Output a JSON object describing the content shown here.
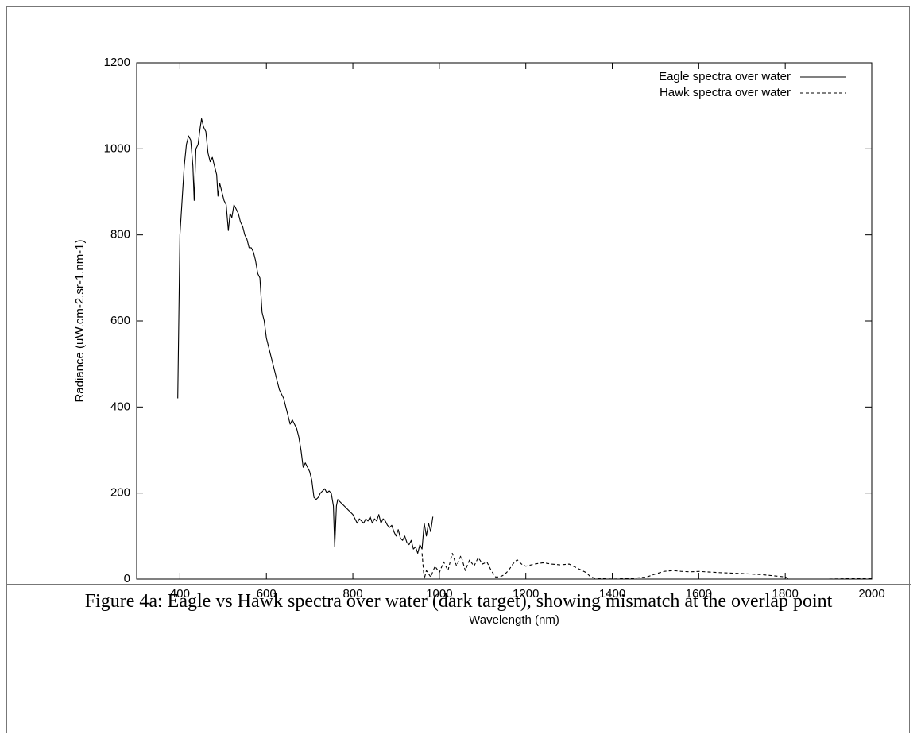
{
  "chart_data": {
    "type": "line",
    "xlabel": "Wavelength (nm)",
    "ylabel": "Radiance (uW.cm-2.sr-1.nm-1)",
    "xlim": [
      300,
      2000
    ],
    "xticks": [
      400,
      600,
      800,
      1000,
      1200,
      1400,
      1600,
      1800,
      2000
    ],
    "ylim": [
      0,
      1200
    ],
    "yticks": [
      0,
      200,
      400,
      600,
      800,
      1000,
      1200
    ],
    "legend": "upper right",
    "series": [
      {
        "name": "Eagle spectra over water",
        "color": "#000000",
        "style": "solid",
        "x": [
          395,
          400,
          405,
          410,
          415,
          420,
          425,
          430,
          433,
          437,
          442,
          447,
          450,
          455,
          460,
          465,
          470,
          475,
          480,
          485,
          488,
          492,
          497,
          502,
          507,
          512,
          516,
          520,
          525,
          530,
          535,
          540,
          545,
          550,
          555,
          560,
          565,
          570,
          575,
          580,
          585,
          590,
          595,
          600,
          605,
          610,
          615,
          620,
          625,
          630,
          635,
          640,
          645,
          650,
          655,
          660,
          665,
          670,
          675,
          680,
          685,
          690,
          695,
          700,
          705,
          710,
          715,
          720,
          725,
          730,
          735,
          740,
          745,
          750,
          755,
          758,
          762,
          765,
          770,
          775,
          780,
          785,
          790,
          795,
          800,
          805,
          810,
          815,
          820,
          825,
          830,
          835,
          840,
          845,
          850,
          855,
          860,
          865,
          870,
          875,
          880,
          885,
          890,
          895,
          900,
          905,
          910,
          915,
          920,
          925,
          930,
          935,
          940,
          945,
          950,
          955,
          960,
          965,
          970,
          975,
          980,
          985
        ],
        "values": [
          420,
          800,
          880,
          960,
          1010,
          1030,
          1020,
          960,
          880,
          1000,
          1010,
          1050,
          1070,
          1050,
          1040,
          990,
          970,
          980,
          960,
          940,
          890,
          920,
          900,
          880,
          870,
          810,
          850,
          840,
          870,
          860,
          850,
          830,
          820,
          800,
          790,
          770,
          770,
          760,
          740,
          710,
          700,
          620,
          600,
          560,
          540,
          520,
          500,
          480,
          460,
          440,
          430,
          420,
          400,
          380,
          360,
          370,
          360,
          350,
          330,
          300,
          260,
          270,
          260,
          250,
          230,
          190,
          185,
          190,
          200,
          205,
          210,
          200,
          205,
          200,
          170,
          75,
          170,
          185,
          180,
          175,
          170,
          165,
          160,
          155,
          150,
          140,
          130,
          140,
          135,
          130,
          140,
          135,
          145,
          130,
          140,
          135,
          150,
          130,
          140,
          135,
          125,
          120,
          125,
          110,
          100,
          115,
          95,
          90,
          100,
          85,
          80,
          90,
          70,
          75,
          60,
          80,
          70,
          130,
          100,
          130,
          110,
          145
        ]
      },
      {
        "name": "Hawk spectra over water",
        "color": "#000000",
        "style": "dashed",
        "x": [
          960,
          965,
          970,
          980,
          990,
          1000,
          1010,
          1020,
          1030,
          1040,
          1050,
          1060,
          1070,
          1080,
          1090,
          1100,
          1110,
          1120,
          1130,
          1140,
          1150,
          1160,
          1170,
          1180,
          1190,
          1200,
          1220,
          1240,
          1260,
          1280,
          1300,
          1320,
          1340,
          1350,
          1360,
          1400,
          1450,
          1480,
          1500,
          1520,
          1540,
          1560,
          1580,
          1600,
          1650,
          1700,
          1750,
          1800,
          1810,
          1900,
          2000
        ],
        "values": [
          60,
          0,
          20,
          5,
          30,
          15,
          40,
          20,
          60,
          30,
          55,
          20,
          45,
          30,
          50,
          35,
          40,
          20,
          5,
          5,
          10,
          20,
          35,
          45,
          35,
          30,
          35,
          38,
          35,
          33,
          35,
          25,
          15,
          5,
          2,
          0,
          2,
          5,
          12,
          18,
          20,
          18,
          17,
          18,
          15,
          13,
          10,
          5,
          0,
          0,
          2
        ]
      }
    ]
  },
  "caption": "Figure 4a: Eagle vs Hawk spectra over water (dark target), showing mismatch at the overlap point"
}
